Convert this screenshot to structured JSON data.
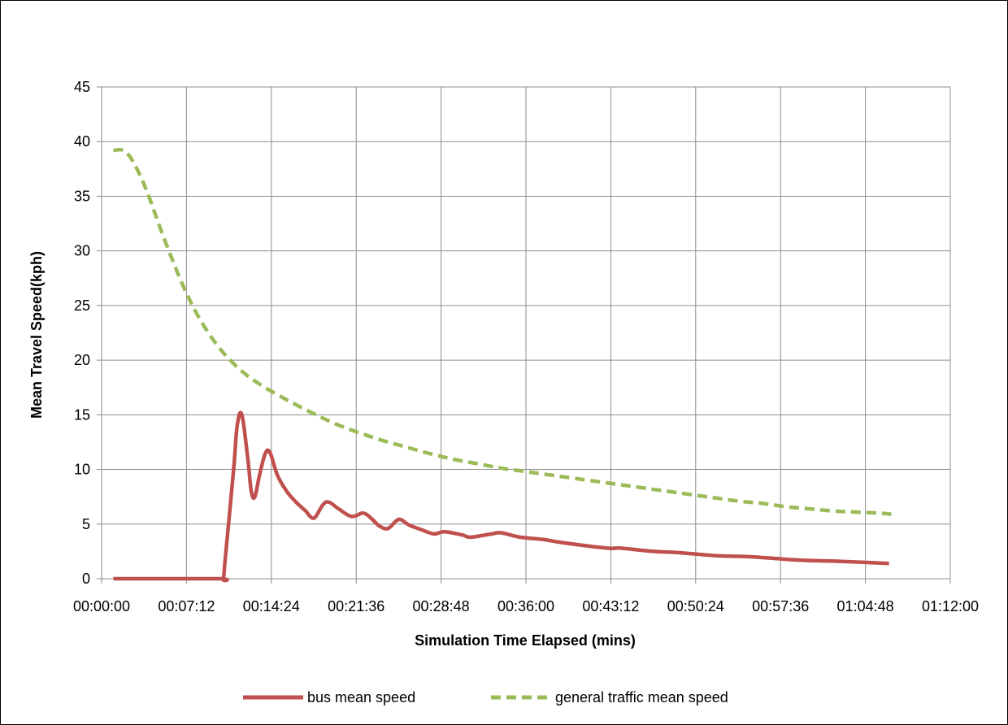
{
  "chart_data": {
    "type": "line",
    "title": "",
    "xlabel": "Simulation Time Elapsed (mins)",
    "ylabel": "Mean Travel Speed(kph)",
    "xlim_minutes": [
      0,
      72
    ],
    "ylim": [
      0,
      45
    ],
    "x_tick_labels": [
      "00:00:00",
      "00:07:12",
      "00:14:24",
      "00:21:36",
      "00:28:48",
      "00:36:00",
      "00:43:12",
      "00:50:24",
      "00:57:36",
      "01:04:48",
      "01:12:00"
    ],
    "y_tick_labels": [
      "0",
      "5",
      "10",
      "15",
      "20",
      "25",
      "30",
      "35",
      "40",
      "45"
    ],
    "grid": true,
    "legend_position": "bottom",
    "series": [
      {
        "name": "bus mean speed",
        "color": "#c0504d",
        "style": "solid",
        "points": [
          [
            1,
            0
          ],
          [
            9.8,
            0
          ],
          [
            10.3,
            0
          ],
          [
            10.5,
            2
          ],
          [
            11.2,
            10
          ],
          [
            11.5,
            14
          ],
          [
            11.9,
            15
          ],
          [
            12.4,
            11
          ],
          [
            12.7,
            8
          ],
          [
            13,
            7.5
          ],
          [
            13.4,
            9.5
          ],
          [
            13.9,
            11.5
          ],
          [
            14.3,
            11.5
          ],
          [
            14.9,
            9.5
          ],
          [
            15.7,
            8
          ],
          [
            16.5,
            7
          ],
          [
            17.3,
            6.2
          ],
          [
            17.7,
            5.7
          ],
          [
            18.1,
            5.6
          ],
          [
            18.8,
            6.8
          ],
          [
            19.3,
            7
          ],
          [
            20.1,
            6.4
          ],
          [
            21.2,
            5.7
          ],
          [
            22.2,
            6
          ],
          [
            22.9,
            5.5
          ],
          [
            23.6,
            4.8
          ],
          [
            24.3,
            4.6
          ],
          [
            25,
            5.3
          ],
          [
            25.4,
            5.4
          ],
          [
            26.1,
            4.9
          ],
          [
            27.1,
            4.5
          ],
          [
            28.2,
            4.1
          ],
          [
            29.1,
            4.3
          ],
          [
            30.6,
            4
          ],
          [
            31.3,
            3.8
          ],
          [
            33.1,
            4.1
          ],
          [
            33.9,
            4.2
          ],
          [
            35.5,
            3.8
          ],
          [
            37.4,
            3.6
          ],
          [
            39.1,
            3.3
          ],
          [
            42.9,
            2.8
          ],
          [
            44,
            2.8
          ],
          [
            46.8,
            2.5
          ],
          [
            48.8,
            2.4
          ],
          [
            52.2,
            2.1
          ],
          [
            55.2,
            2
          ],
          [
            59.2,
            1.7
          ],
          [
            62.4,
            1.6
          ],
          [
            64.5,
            1.5
          ],
          [
            66.8,
            1.4
          ]
        ]
      },
      {
        "name": "general traffic mean speed",
        "color": "#9bbb59",
        "style": "dashed",
        "points": [
          [
            1,
            39.2
          ],
          [
            2,
            39.1
          ],
          [
            3,
            37.5
          ],
          [
            4,
            35
          ],
          [
            5,
            32
          ],
          [
            6,
            29.2
          ],
          [
            7,
            26.6
          ],
          [
            8,
            24.4
          ],
          [
            9,
            22.6
          ],
          [
            10,
            21.1
          ],
          [
            11,
            19.9
          ],
          [
            12,
            18.9
          ],
          [
            13,
            18.1
          ],
          [
            14,
            17.4
          ],
          [
            15,
            16.8
          ],
          [
            16,
            16.2
          ],
          [
            18,
            15.1
          ],
          [
            20,
            14.1
          ],
          [
            22,
            13.3
          ],
          [
            24,
            12.6
          ],
          [
            26,
            12
          ],
          [
            28,
            11.4
          ],
          [
            30,
            10.9
          ],
          [
            32,
            10.5
          ],
          [
            34,
            10.1
          ],
          [
            36,
            9.8
          ],
          [
            38,
            9.5
          ],
          [
            40,
            9.2
          ],
          [
            42,
            8.9
          ],
          [
            44,
            8.6
          ],
          [
            46,
            8.3
          ],
          [
            48,
            8
          ],
          [
            50,
            7.7
          ],
          [
            52,
            7.4
          ],
          [
            54,
            7.1
          ],
          [
            56,
            6.9
          ],
          [
            58,
            6.6
          ],
          [
            60,
            6.4
          ],
          [
            62,
            6.2
          ],
          [
            64,
            6.1
          ],
          [
            66,
            6
          ],
          [
            67,
            5.9
          ]
        ]
      }
    ]
  }
}
